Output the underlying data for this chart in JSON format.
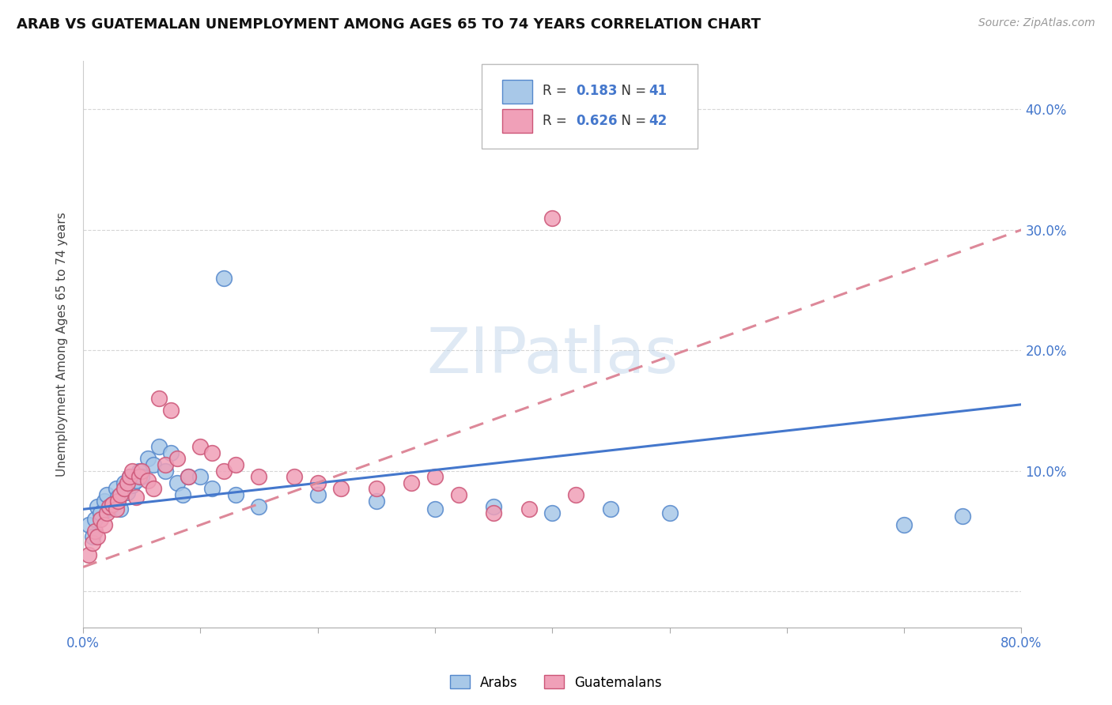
{
  "title": "ARAB VS GUATEMALAN UNEMPLOYMENT AMONG AGES 65 TO 74 YEARS CORRELATION CHART",
  "source": "Source: ZipAtlas.com",
  "ylabel": "Unemployment Among Ages 65 to 74 years",
  "xlim": [
    0.0,
    0.8
  ],
  "ylim": [
    -0.03,
    0.44
  ],
  "yticks": [
    0.0,
    0.1,
    0.2,
    0.3,
    0.4
  ],
  "xticks": [
    0.0,
    0.1,
    0.2,
    0.3,
    0.4,
    0.5,
    0.6,
    0.7,
    0.8
  ],
  "arab_color": "#a8c8e8",
  "arab_edge_color": "#5588cc",
  "guatemalan_color": "#f0a0b8",
  "guatemalan_edge_color": "#cc5577",
  "trend_arab_color": "#4477cc",
  "trend_guatemalan_color": "#dd8899",
  "R_arab": 0.183,
  "N_arab": 41,
  "R_guatemalan": 0.626,
  "N_guatemalan": 42,
  "watermark": "ZIPatlas",
  "arab_x": [
    0.005,
    0.008,
    0.01,
    0.012,
    0.015,
    0.018,
    0.02,
    0.022,
    0.025,
    0.028,
    0.03,
    0.032,
    0.035,
    0.038,
    0.04,
    0.042,
    0.045,
    0.048,
    0.05,
    0.055,
    0.06,
    0.065,
    0.07,
    0.075,
    0.08,
    0.085,
    0.09,
    0.1,
    0.11,
    0.12,
    0.13,
    0.15,
    0.2,
    0.25,
    0.3,
    0.35,
    0.4,
    0.45,
    0.5,
    0.7,
    0.75
  ],
  "arab_y": [
    0.055,
    0.045,
    0.06,
    0.07,
    0.065,
    0.075,
    0.08,
    0.068,
    0.072,
    0.085,
    0.078,
    0.068,
    0.09,
    0.082,
    0.095,
    0.088,
    0.092,
    0.1,
    0.095,
    0.11,
    0.105,
    0.12,
    0.1,
    0.115,
    0.09,
    0.08,
    0.095,
    0.095,
    0.085,
    0.26,
    0.08,
    0.07,
    0.08,
    0.075,
    0.068,
    0.07,
    0.065,
    0.068,
    0.065,
    0.055,
    0.062
  ],
  "guatemalan_x": [
    0.005,
    0.008,
    0.01,
    0.012,
    0.015,
    0.018,
    0.02,
    0.022,
    0.025,
    0.028,
    0.03,
    0.032,
    0.035,
    0.038,
    0.04,
    0.042,
    0.045,
    0.048,
    0.05,
    0.055,
    0.06,
    0.065,
    0.07,
    0.075,
    0.08,
    0.09,
    0.1,
    0.11,
    0.12,
    0.13,
    0.15,
    0.18,
    0.2,
    0.22,
    0.25,
    0.28,
    0.3,
    0.32,
    0.35,
    0.38,
    0.4,
    0.42
  ],
  "guatemalan_y": [
    0.03,
    0.04,
    0.05,
    0.045,
    0.06,
    0.055,
    0.065,
    0.07,
    0.072,
    0.068,
    0.075,
    0.08,
    0.085,
    0.09,
    0.095,
    0.1,
    0.078,
    0.095,
    0.1,
    0.092,
    0.085,
    0.16,
    0.105,
    0.15,
    0.11,
    0.095,
    0.12,
    0.115,
    0.1,
    0.105,
    0.095,
    0.095,
    0.09,
    0.085,
    0.085,
    0.09,
    0.095,
    0.08,
    0.065,
    0.068,
    0.31,
    0.08
  ]
}
